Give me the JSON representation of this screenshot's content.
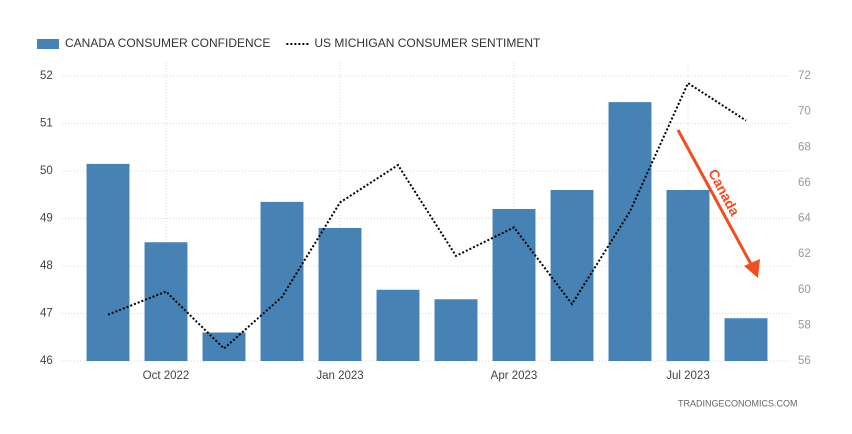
{
  "chart_data": {
    "type": "bar",
    "categories": [
      null,
      "Oct 2022",
      null,
      null,
      "Jan 2023",
      null,
      null,
      "Apr 2023",
      null,
      null,
      "Jul 2023",
      null
    ],
    "series": [
      {
        "name": "CANADA CONSUMER CONFIDENCE",
        "color": "#4682b4",
        "type": "bar",
        "values": [
          50.15,
          48.5,
          46.6,
          49.35,
          48.8,
          47.5,
          47.3,
          49.2,
          49.6,
          51.45,
          49.6,
          46.9
        ]
      },
      {
        "name": "US MICHIGAN CONSUMER SENTIMENT",
        "color": "#000000",
        "type": "line",
        "axis": "y2",
        "values": [
          58.6,
          59.9,
          56.7,
          59.6,
          64.9,
          67.0,
          61.9,
          63.5,
          59.2,
          64.4,
          71.6,
          69.5
        ]
      }
    ],
    "ylim": [
      46,
      52
    ],
    "yticks": [
      46,
      47,
      48,
      49,
      50,
      51,
      52
    ],
    "y2lim": [
      56,
      72
    ],
    "y2ticks": [
      56,
      58,
      60,
      62,
      64,
      66,
      68,
      70,
      72
    ],
    "grid": true,
    "annotation": "Canada",
    "annotation_color": "#f04e23",
    "source": "TRADINGECONOMICS.COM"
  }
}
